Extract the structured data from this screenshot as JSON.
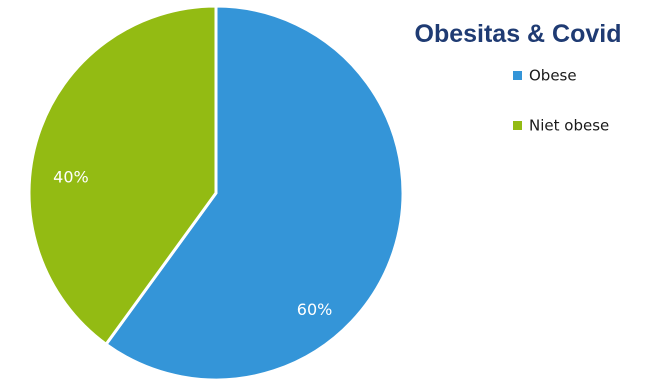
{
  "chart_data": {
    "type": "pie",
    "title": "Obesitas & Covid",
    "categories": [
      "Obese",
      "Niet obese"
    ],
    "values": [
      60,
      40
    ],
    "labels": [
      "60%",
      "40%"
    ],
    "colors": [
      "#3495d8",
      "#93bb13"
    ],
    "start_angle_deg": 0,
    "direction": "clockwise",
    "legend_position": "right"
  }
}
